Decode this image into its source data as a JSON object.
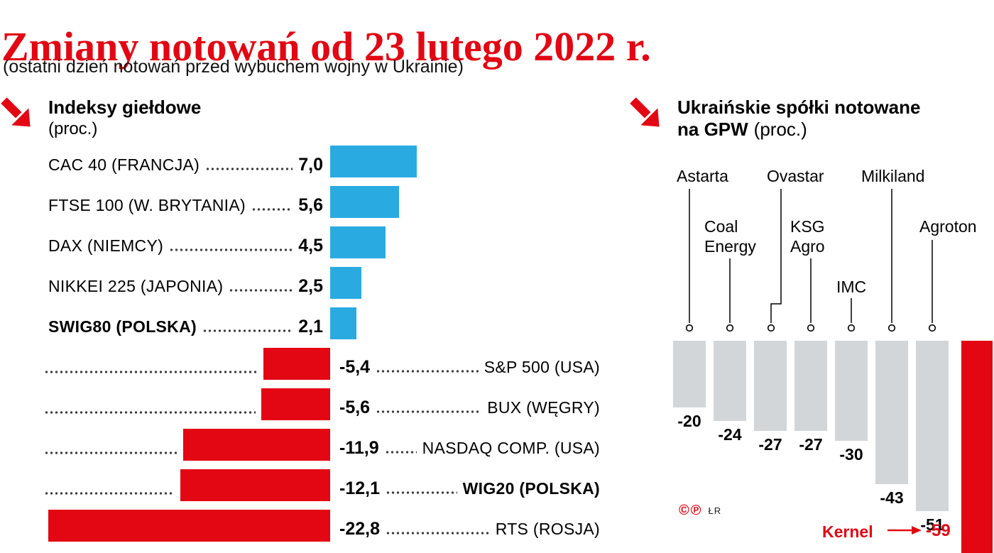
{
  "title": "Zmiany notowań od 23 lutego 2022 r.",
  "subtitle": "(ostatni dzień notowań przed wybuchem wojny w Ukrainie)",
  "credit": {
    "copyright": "©℗",
    "initials": "ŁR"
  },
  "colors": {
    "red": "#e30613",
    "blue": "#29abe2",
    "gray": "#d2d6d9"
  },
  "left_panel": {
    "heading": "Indeksy giełdowe",
    "heading_unit": "(proc.)"
  },
  "right_panel": {
    "heading_line1": "Ukraińskie spółki notowane",
    "heading_line2_bold": "na GPW",
    "heading_line2_unit": "(proc.)"
  },
  "chart_data": [
    {
      "type": "bar",
      "orientation": "horizontal",
      "title": "Indeksy giełdowe (proc.)",
      "categories": [
        "CAC 40 (FRANCJA)",
        "FTSE 100 (W. BRYTANIA)",
        "DAX (NIEMCY)",
        "NIKKEI 225 (JAPONIA)",
        "SWIG80 (POLSKA)",
        "S&P 500 (USA)",
        "BUX (WĘGRY)",
        "NASDAQ COMP. (USA)",
        "WIG20 (POLSKA)",
        "RTS (ROSJA)"
      ],
      "values": [
        7.0,
        5.6,
        4.5,
        2.5,
        2.1,
        -5.4,
        -5.6,
        -11.9,
        -12.1,
        -22.8
      ],
      "value_labels": [
        "7,0",
        "5,6",
        "4,5",
        "2,5",
        "2,1",
        "-5,4",
        "-5,6",
        "-11,9",
        "-12,1",
        "-22,8"
      ],
      "bold_categories": [
        "SWIG80 (POLSKA)",
        "WIG20 (POLSKA)"
      ],
      "positive_color": "#29abe2",
      "negative_color": "#e30613",
      "unit": "proc.",
      "grid": "dotted-leaders",
      "xlim": [
        -22.8,
        7.0
      ]
    },
    {
      "type": "bar",
      "orientation": "vertical",
      "title": "Ukraińskie spółki notowane na GPW (proc.)",
      "categories": [
        "Astarta",
        "Coal Energy",
        "Ovastar",
        "KSG Agro",
        "IMC",
        "Milkiland",
        "Agroton",
        "Kernel"
      ],
      "values": [
        -20,
        -24,
        -27,
        -27,
        -30,
        -43,
        -51,
        -59
      ],
      "value_labels": [
        "-20",
        "-24",
        "-27",
        "-27",
        "-30",
        "-43",
        "-51",
        "-59"
      ],
      "highlight_category": "Kernel",
      "bar_color": "#d2d6d9",
      "highlight_color": "#e30613",
      "unit": "proc.",
      "ylim": [
        -59,
        0
      ]
    }
  ]
}
